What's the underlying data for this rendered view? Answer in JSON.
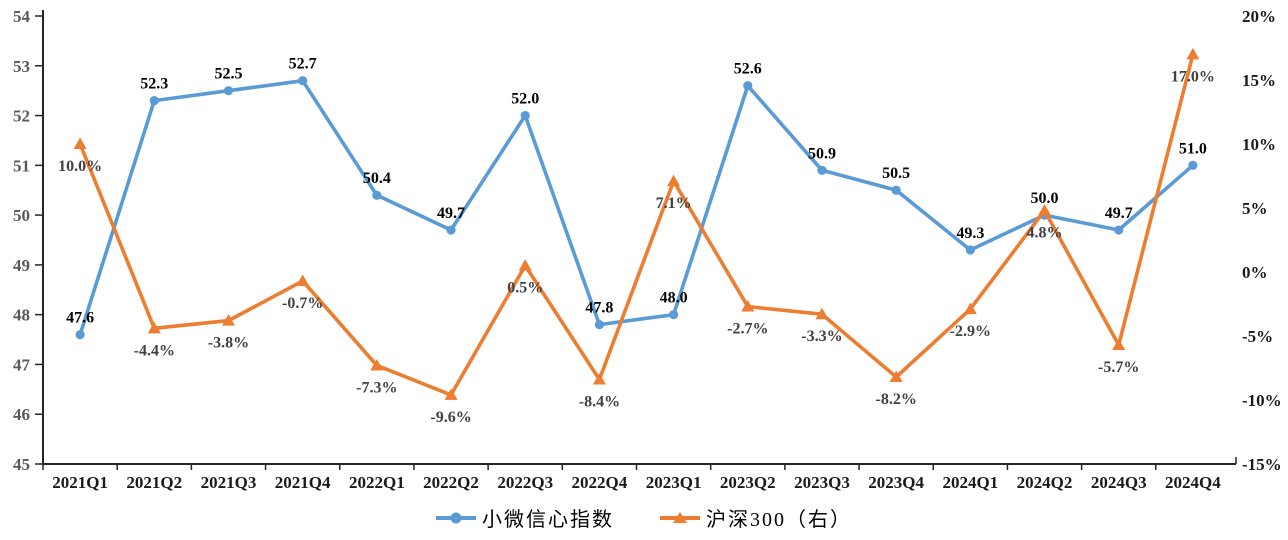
{
  "chart_data": {
    "type": "line",
    "title": "",
    "grid": false,
    "legend_position": "bottom",
    "categories": [
      "2021Q1",
      "2021Q2",
      "2021Q3",
      "2021Q4",
      "2022Q1",
      "2022Q2",
      "2022Q3",
      "2022Q4",
      "2023Q1",
      "2023Q2",
      "2023Q3",
      "2023Q4",
      "2024Q1",
      "2024Q2",
      "2024Q3",
      "2024Q4"
    ],
    "series": [
      {
        "name": "小微信心指数",
        "axis": "left",
        "marker": "circle",
        "color": "#5B9BD5",
        "label_color": "#000000",
        "values": [
          47.6,
          52.3,
          52.5,
          52.7,
          50.4,
          49.7,
          52.0,
          47.8,
          48.0,
          52.6,
          50.9,
          50.5,
          49.3,
          50.0,
          49.7,
          51.0
        ],
        "labels": [
          "47.6",
          "52.3",
          "52.5",
          "52.7",
          "50.4",
          "49.7",
          "52.0",
          "47.8",
          "48.0",
          "52.6",
          "50.9",
          "50.5",
          "49.3",
          "50.0",
          "49.7",
          "51.0"
        ]
      },
      {
        "name": "沪深300（右）",
        "axis": "right",
        "marker": "triangle",
        "color": "#ED7D31",
        "label_color": "#404040",
        "values": [
          10.0,
          -4.4,
          -3.8,
          -0.7,
          -7.3,
          -9.6,
          0.5,
          -8.4,
          7.1,
          -2.7,
          -3.3,
          -8.2,
          -2.9,
          4.8,
          -5.7,
          17.0
        ],
        "labels": [
          "10.0%",
          "-4.4%",
          "-3.8%",
          "-0.7%",
          "-7.3%",
          "-9.6%",
          "0.5%",
          "-8.4%",
          "7.1%",
          "-2.7%",
          "-3.3%",
          "-8.2%",
          "-2.9%",
          "4.8%",
          "-5.7%",
          "17.0%"
        ]
      }
    ],
    "left_axis": {
      "min": 45,
      "max": 54,
      "step": 1,
      "ticks": [
        "45",
        "46",
        "47",
        "48",
        "49",
        "50",
        "51",
        "52",
        "53",
        "54"
      ],
      "label_color": "#595959"
    },
    "right_axis": {
      "min": -15,
      "max": 20,
      "step": 5,
      "ticks": [
        "-15%",
        "-10%",
        "-5%",
        "0%",
        "5%",
        "10%",
        "15%",
        "20%"
      ],
      "label_color": "#1a1a1a"
    },
    "x_axis": {
      "label_color": "#1a1a1a"
    },
    "axis_line_color": "#262626"
  }
}
